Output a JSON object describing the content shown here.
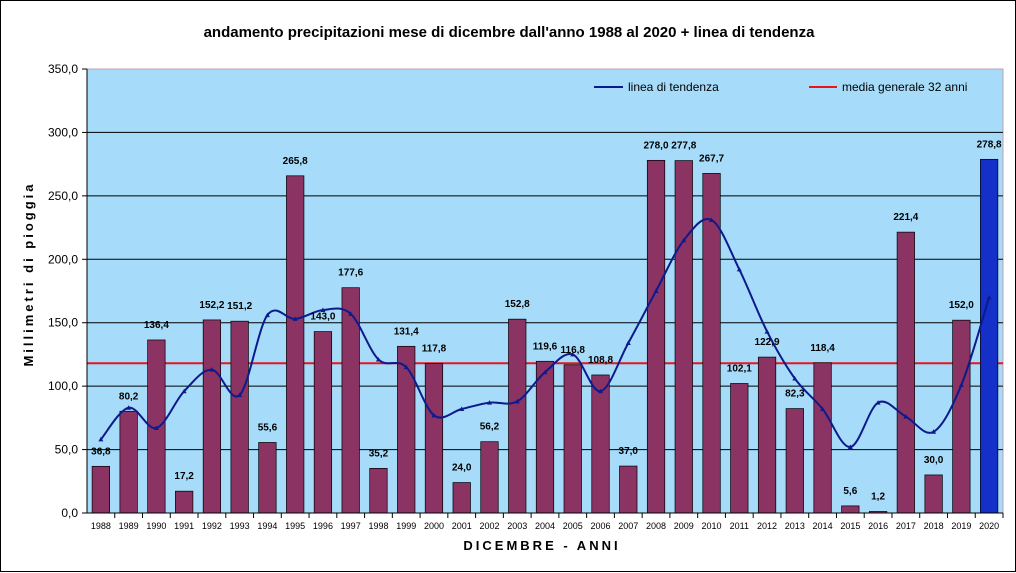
{
  "chart_data": {
    "type": "bar",
    "title": "andamento precipitazioni mese di dicembre dall'anno 1988 al 2020 + linea di tendenza",
    "xlabel": "DICEMBRE - ANNI",
    "ylabel": "Millimetri di pioggia",
    "ylim": [
      0,
      350
    ],
    "yticks": [
      "0,0",
      "50,0",
      "100,0",
      "150,0",
      "200,0",
      "250,0",
      "300,0",
      "350,0"
    ],
    "grid": true,
    "legend_position": "top-right",
    "background_color": "#a6dcfa",
    "bar_color": "#8b3464",
    "highlight_bar_color": "#1530c8",
    "highlight_label_color": "#1530c8",
    "categories": [
      "1988",
      "1989",
      "1990",
      "1991",
      "1992",
      "1993",
      "1994",
      "1995",
      "1996",
      "1997",
      "1998",
      "1999",
      "2000",
      "2001",
      "2002",
      "2003",
      "2004",
      "2005",
      "2006",
      "2007",
      "2008",
      "2009",
      "2010",
      "2011",
      "2012",
      "2013",
      "2014",
      "2015",
      "2016",
      "2017",
      "2018",
      "2019",
      "2020"
    ],
    "values": [
      36.8,
      80.2,
      136.4,
      17.2,
      152.2,
      151.2,
      55.6,
      265.8,
      143.0,
      177.6,
      35.2,
      131.4,
      117.8,
      24.0,
      56.2,
      152.8,
      119.6,
      116.8,
      108.8,
      37.0,
      278.0,
      277.8,
      267.7,
      102.1,
      122.9,
      82.3,
      118.4,
      5.6,
      1.2,
      221.4,
      30.0,
      152.0,
      278.8
    ],
    "value_labels": [
      "36,8",
      "80,2",
      "136,4",
      "17,2",
      "152,2",
      "151,2",
      "55,6",
      "265,8",
      "143,0",
      "177,6",
      "35,2",
      "131,4",
      "117,8",
      "24,0",
      "56,2",
      "152,8",
      "119,6",
      "116,8",
      "108,8",
      "37,0",
      "278,0",
      "277,8",
      "267,7",
      "102,1",
      "122,9",
      "82,3",
      "118,4",
      "5,6",
      "1,2",
      "221,4",
      "30,0",
      "152,0",
      "278,8"
    ],
    "trend": {
      "name": "linea di tendenza",
      "color": "#0d1a8c",
      "values": [
        58,
        83,
        67,
        96,
        113,
        93,
        156,
        153,
        160,
        157,
        121,
        115,
        77,
        82,
        87,
        88,
        111,
        125,
        96,
        134,
        175,
        215,
        231,
        192,
        143,
        106,
        82,
        52,
        87,
        76,
        64,
        101,
        170
      ]
    },
    "average": {
      "name": "media generale 32 anni",
      "color": "#e8141e",
      "value": 118
    }
  }
}
